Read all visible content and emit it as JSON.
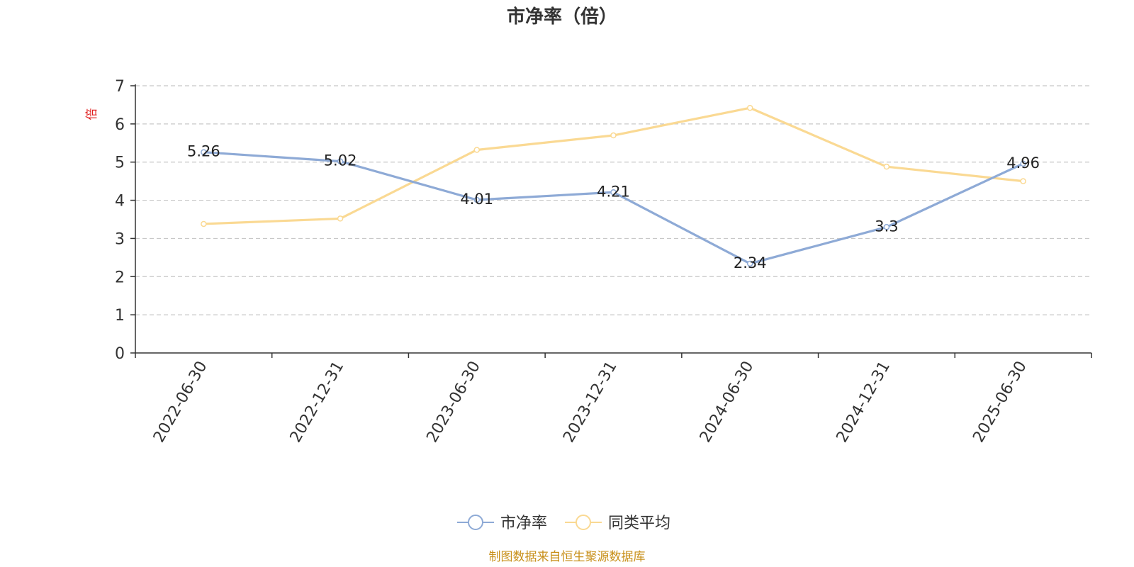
{
  "chart_data": {
    "type": "line",
    "title": "市净率（倍）",
    "ylabel": "倍",
    "xlabel": "",
    "categories": [
      "2022-06-30",
      "2022-12-31",
      "2023-06-30",
      "2023-12-31",
      "2024-06-30",
      "2024-12-31",
      "2025-06-30"
    ],
    "ylim": [
      0,
      7
    ],
    "yticks": [
      "0",
      "1",
      "2",
      "3",
      "4",
      "5",
      "6",
      "7"
    ],
    "grid": true,
    "legend_position": "bottom-center",
    "series": [
      {
        "name": "市净率",
        "color": "#8eaad6",
        "values": [
          5.26,
          5.02,
          4.01,
          4.21,
          2.34,
          3.3,
          4.96
        ],
        "labels": [
          "5.26",
          "5.02",
          "4.01",
          "4.21",
          "2.34",
          "3.3",
          "4.96"
        ]
      },
      {
        "name": "同类平均",
        "color": "#fad993",
        "values": [
          3.38,
          3.52,
          5.32,
          5.7,
          6.42,
          4.88,
          4.5
        ]
      }
    ]
  },
  "source_note": "制图数据来自恒生聚源数据库"
}
